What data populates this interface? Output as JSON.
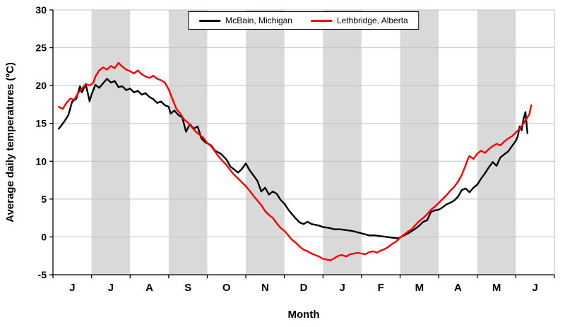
{
  "legend": {
    "items": [
      {
        "label": "McBain, Michigan",
        "color": "#000000"
      },
      {
        "label": "Lethbridge, Alberta",
        "color": "#ff0000"
      }
    ]
  },
  "chart_data": {
    "type": "line",
    "title": "",
    "xlabel": "Month",
    "ylabel": "Average daily temperatures (ºC)",
    "ylim": [
      -5,
      30
    ],
    "ytick_step": 5,
    "x_tick_labels": [
      "J",
      "J",
      "A",
      "S",
      "O",
      "N",
      "D",
      "J",
      "F",
      "M",
      "A",
      "M",
      "J"
    ],
    "x_range_months": [
      0,
      13
    ],
    "shaded_month_indices": [
      1,
      3,
      5,
      7,
      9,
      11
    ],
    "grid": true,
    "legend_position": "top-center",
    "colors": {
      "band": "#d9d9d9",
      "grid": "#c3c3c3",
      "axis": "#000000",
      "background": "#ffffff"
    },
    "series": [
      {
        "name": "McBain, Michigan",
        "color": "#000000",
        "points": [
          [
            0.15,
            14.3
          ],
          [
            0.2,
            14.6
          ],
          [
            0.3,
            15.3
          ],
          [
            0.4,
            16.1
          ],
          [
            0.5,
            17.9
          ],
          [
            0.6,
            18.2
          ],
          [
            0.7,
            19.9
          ],
          [
            0.75,
            19.1
          ],
          [
            0.85,
            20.2
          ],
          [
            0.95,
            17.9
          ],
          [
            1.0,
            18.8
          ],
          [
            1.1,
            20.1
          ],
          [
            1.2,
            19.7
          ],
          [
            1.3,
            20.3
          ],
          [
            1.4,
            20.9
          ],
          [
            1.5,
            20.4
          ],
          [
            1.6,
            20.6
          ],
          [
            1.7,
            19.8
          ],
          [
            1.8,
            19.9
          ],
          [
            1.9,
            19.4
          ],
          [
            2.0,
            19.6
          ],
          [
            2.1,
            19.1
          ],
          [
            2.2,
            19.3
          ],
          [
            2.3,
            18.8
          ],
          [
            2.4,
            19.0
          ],
          [
            2.5,
            18.5
          ],
          [
            2.6,
            18.2
          ],
          [
            2.7,
            17.7
          ],
          [
            2.8,
            17.9
          ],
          [
            2.9,
            17.4
          ],
          [
            3.0,
            17.2
          ],
          [
            3.05,
            16.3
          ],
          [
            3.15,
            16.7
          ],
          [
            3.25,
            16.1
          ],
          [
            3.35,
            15.8
          ],
          [
            3.45,
            13.9
          ],
          [
            3.55,
            14.9
          ],
          [
            3.65,
            14.3
          ],
          [
            3.75,
            14.6
          ],
          [
            3.85,
            13.0
          ],
          [
            3.95,
            12.5
          ],
          [
            4.1,
            12.1
          ],
          [
            4.2,
            11.4
          ],
          [
            4.35,
            11.0
          ],
          [
            4.5,
            10.2
          ],
          [
            4.6,
            9.3
          ],
          [
            4.7,
            8.9
          ],
          [
            4.8,
            8.5
          ],
          [
            4.9,
            9.0
          ],
          [
            5.0,
            9.7
          ],
          [
            5.1,
            8.8
          ],
          [
            5.2,
            8.1
          ],
          [
            5.3,
            7.4
          ],
          [
            5.4,
            6.0
          ],
          [
            5.5,
            6.5
          ],
          [
            5.6,
            5.6
          ],
          [
            5.7,
            6.0
          ],
          [
            5.8,
            5.7
          ],
          [
            5.9,
            4.9
          ],
          [
            6.0,
            4.4
          ],
          [
            6.1,
            3.6
          ],
          [
            6.2,
            3.0
          ],
          [
            6.3,
            2.4
          ],
          [
            6.4,
            1.9
          ],
          [
            6.5,
            1.7
          ],
          [
            6.6,
            2.0
          ],
          [
            6.7,
            1.7
          ],
          [
            6.8,
            1.6
          ],
          [
            6.9,
            1.5
          ],
          [
            7.0,
            1.3
          ],
          [
            7.15,
            1.2
          ],
          [
            7.3,
            1.0
          ],
          [
            7.45,
            1.0
          ],
          [
            7.6,
            0.9
          ],
          [
            7.75,
            0.8
          ],
          [
            7.9,
            0.6
          ],
          [
            8.05,
            0.4
          ],
          [
            8.2,
            0.2
          ],
          [
            8.35,
            0.2
          ],
          [
            8.5,
            0.1
          ],
          [
            8.65,
            0.0
          ],
          [
            8.8,
            -0.1
          ],
          [
            8.95,
            -0.2
          ],
          [
            9.1,
            0.2
          ],
          [
            9.25,
            0.6
          ],
          [
            9.4,
            1.1
          ],
          [
            9.5,
            1.5
          ],
          [
            9.6,
            2.0
          ],
          [
            9.7,
            2.2
          ],
          [
            9.8,
            3.3
          ],
          [
            9.9,
            3.5
          ],
          [
            10.0,
            3.6
          ],
          [
            10.1,
            3.9
          ],
          [
            10.2,
            4.3
          ],
          [
            10.3,
            4.5
          ],
          [
            10.4,
            4.8
          ],
          [
            10.5,
            5.3
          ],
          [
            10.6,
            6.2
          ],
          [
            10.7,
            6.4
          ],
          [
            10.8,
            5.9
          ],
          [
            10.9,
            6.5
          ],
          [
            11.0,
            6.9
          ],
          [
            11.1,
            7.7
          ],
          [
            11.2,
            8.4
          ],
          [
            11.3,
            9.2
          ],
          [
            11.4,
            9.9
          ],
          [
            11.5,
            9.4
          ],
          [
            11.6,
            10.5
          ],
          [
            11.7,
            10.9
          ],
          [
            11.8,
            11.3
          ],
          [
            11.9,
            12.0
          ],
          [
            12.0,
            12.7
          ],
          [
            12.05,
            13.3
          ],
          [
            12.1,
            14.6
          ],
          [
            12.15,
            14.1
          ],
          [
            12.2,
            15.6
          ],
          [
            12.25,
            16.5
          ],
          [
            12.3,
            13.7
          ]
        ]
      },
      {
        "name": "Lethbridge, Alberta",
        "color": "#ff0000",
        "points": [
          [
            0.15,
            17.2
          ],
          [
            0.25,
            16.9
          ],
          [
            0.35,
            17.7
          ],
          [
            0.45,
            18.3
          ],
          [
            0.55,
            18.1
          ],
          [
            0.65,
            19.0
          ],
          [
            0.75,
            19.6
          ],
          [
            0.85,
            20.2
          ],
          [
            0.95,
            20.0
          ],
          [
            1.05,
            20.4
          ],
          [
            1.1,
            21.2
          ],
          [
            1.2,
            22.0
          ],
          [
            1.3,
            22.4
          ],
          [
            1.4,
            22.1
          ],
          [
            1.5,
            22.6
          ],
          [
            1.6,
            22.3
          ],
          [
            1.7,
            23.0
          ],
          [
            1.8,
            22.5
          ],
          [
            1.9,
            22.1
          ],
          [
            2.0,
            21.9
          ],
          [
            2.1,
            21.6
          ],
          [
            2.2,
            22.0
          ],
          [
            2.3,
            21.5
          ],
          [
            2.4,
            21.2
          ],
          [
            2.5,
            21.0
          ],
          [
            2.6,
            21.3
          ],
          [
            2.7,
            20.9
          ],
          [
            2.8,
            20.7
          ],
          [
            2.9,
            20.4
          ],
          [
            3.0,
            19.5
          ],
          [
            3.1,
            18.2
          ],
          [
            3.2,
            16.9
          ],
          [
            3.3,
            16.3
          ],
          [
            3.4,
            15.5
          ],
          [
            3.5,
            15.1
          ],
          [
            3.6,
            14.5
          ],
          [
            3.7,
            13.9
          ],
          [
            3.8,
            13.5
          ],
          [
            3.9,
            13.1
          ],
          [
            4.0,
            12.4
          ],
          [
            4.1,
            12.0
          ],
          [
            4.2,
            11.3
          ],
          [
            4.3,
            10.6
          ],
          [
            4.4,
            10.0
          ],
          [
            4.5,
            9.5
          ],
          [
            4.6,
            8.8
          ],
          [
            4.7,
            8.2
          ],
          [
            4.8,
            7.7
          ],
          [
            4.9,
            7.2
          ],
          [
            5.0,
            6.7
          ],
          [
            5.1,
            6.1
          ],
          [
            5.2,
            5.4
          ],
          [
            5.3,
            4.8
          ],
          [
            5.4,
            4.2
          ],
          [
            5.5,
            3.4
          ],
          [
            5.6,
            2.9
          ],
          [
            5.7,
            2.5
          ],
          [
            5.8,
            1.8
          ],
          [
            5.9,
            1.2
          ],
          [
            6.0,
            0.8
          ],
          [
            6.1,
            0.2
          ],
          [
            6.2,
            -0.4
          ],
          [
            6.3,
            -0.8
          ],
          [
            6.4,
            -1.3
          ],
          [
            6.5,
            -1.7
          ],
          [
            6.6,
            -1.9
          ],
          [
            6.7,
            -2.2
          ],
          [
            6.8,
            -2.4
          ],
          [
            6.9,
            -2.6
          ],
          [
            7.0,
            -2.9
          ],
          [
            7.1,
            -3.0
          ],
          [
            7.2,
            -3.1
          ],
          [
            7.3,
            -2.8
          ],
          [
            7.4,
            -2.5
          ],
          [
            7.5,
            -2.4
          ],
          [
            7.6,
            -2.6
          ],
          [
            7.7,
            -2.3
          ],
          [
            7.8,
            -2.2
          ],
          [
            7.9,
            -2.1
          ],
          [
            8.0,
            -2.2
          ],
          [
            8.1,
            -2.3
          ],
          [
            8.2,
            -2.0
          ],
          [
            8.3,
            -1.9
          ],
          [
            8.4,
            -2.1
          ],
          [
            8.5,
            -1.8
          ],
          [
            8.6,
            -1.6
          ],
          [
            8.7,
            -1.3
          ],
          [
            8.8,
            -0.9
          ],
          [
            8.9,
            -0.6
          ],
          [
            9.0,
            -0.1
          ],
          [
            9.1,
            0.3
          ],
          [
            9.2,
            0.7
          ],
          [
            9.3,
            1.0
          ],
          [
            9.4,
            1.6
          ],
          [
            9.5,
            2.1
          ],
          [
            9.6,
            2.5
          ],
          [
            9.7,
            3.0
          ],
          [
            9.8,
            3.6
          ],
          [
            9.9,
            4.0
          ],
          [
            10.0,
            4.5
          ],
          [
            10.1,
            5.0
          ],
          [
            10.2,
            5.5
          ],
          [
            10.3,
            6.1
          ],
          [
            10.4,
            6.6
          ],
          [
            10.5,
            7.3
          ],
          [
            10.6,
            8.2
          ],
          [
            10.7,
            9.5
          ],
          [
            10.75,
            10.2
          ],
          [
            10.8,
            10.7
          ],
          [
            10.9,
            10.3
          ],
          [
            11.0,
            11.0
          ],
          [
            11.1,
            11.4
          ],
          [
            11.2,
            11.1
          ],
          [
            11.3,
            11.6
          ],
          [
            11.4,
            12.0
          ],
          [
            11.5,
            12.3
          ],
          [
            11.6,
            12.1
          ],
          [
            11.7,
            12.6
          ],
          [
            11.8,
            13.0
          ],
          [
            11.9,
            13.3
          ],
          [
            12.0,
            13.8
          ],
          [
            12.1,
            14.3
          ],
          [
            12.2,
            15.0
          ],
          [
            12.3,
            15.8
          ],
          [
            12.35,
            16.2
          ],
          [
            12.4,
            17.4
          ]
        ]
      }
    ]
  }
}
